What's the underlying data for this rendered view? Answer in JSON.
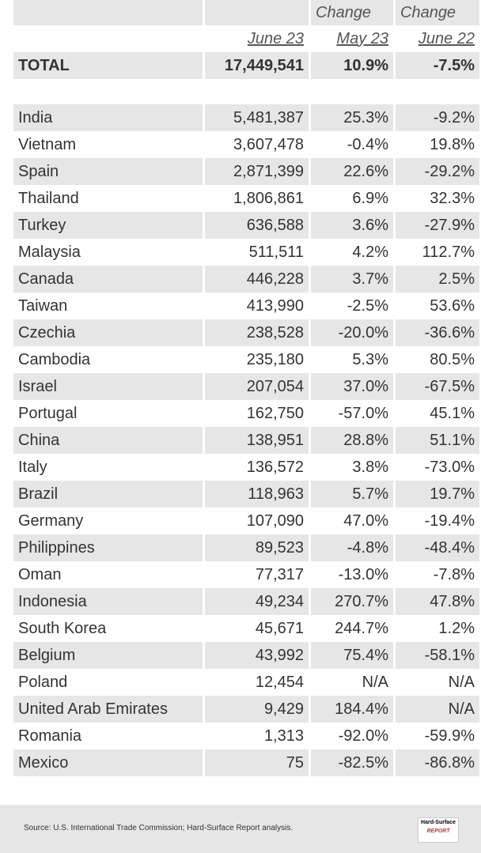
{
  "header": {
    "row1": [
      "Change",
      "Change"
    ],
    "row2": [
      "June 23",
      "May 23",
      "June 22"
    ]
  },
  "total": [
    "TOTAL",
    "17,449,541",
    "10.9%",
    "-7.5%"
  ],
  "table": {
    "rows": [
      [
        "India",
        "5,481,387",
        "25.3%",
        "-9.2%"
      ],
      [
        "Vietnam",
        "3,607,478",
        "-0.4%",
        "19.8%"
      ],
      [
        "Spain",
        "2,871,399",
        "22.6%",
        "-29.2%"
      ],
      [
        "Thailand",
        "1,806,861",
        "6.9%",
        "32.3%"
      ],
      [
        "Turkey",
        "636,588",
        "3.6%",
        "-27.9%"
      ],
      [
        "Malaysia",
        "511,511",
        "4.2%",
        "112.7%"
      ],
      [
        "Canada",
        "446,228",
        "3.7%",
        "2.5%"
      ],
      [
        "Taiwan",
        "413,990",
        "-2.5%",
        "53.6%"
      ],
      [
        "Czechia",
        "238,528",
        "-20.0%",
        "-36.6%"
      ],
      [
        "Cambodia",
        "235,180",
        "5.3%",
        "80.5%"
      ],
      [
        "Israel",
        "207,054",
        "37.0%",
        "-67.5%"
      ],
      [
        "Portugal",
        "162,750",
        "-57.0%",
        "45.1%"
      ],
      [
        "China",
        "138,951",
        "28.8%",
        "51.1%"
      ],
      [
        "Italy",
        "136,572",
        "3.8%",
        "-73.0%"
      ],
      [
        "Brazil",
        "118,963",
        "5.7%",
        "19.7%"
      ],
      [
        "Germany",
        "107,090",
        "47.0%",
        "-19.4%"
      ],
      [
        "Philippines",
        "89,523",
        "-4.8%",
        "-48.4%"
      ],
      [
        "Oman",
        "77,317",
        "-13.0%",
        "-7.8%"
      ],
      [
        "Indonesia",
        "49,234",
        "270.7%",
        "47.8%"
      ],
      [
        "South Korea",
        "45,671",
        "244.7%",
        "1.2%"
      ],
      [
        "Belgium",
        "43,992",
        "75.4%",
        "-58.1%"
      ],
      [
        "Poland",
        "12,454",
        "N/A",
        "N/A"
      ],
      [
        "United Arab Emirates",
        "9,429",
        "184.4%",
        "N/A"
      ],
      [
        "Romania",
        "1,313",
        "-92.0%",
        "-59.9%"
      ],
      [
        "Mexico",
        "75",
        "-82.5%",
        "-86.8%"
      ]
    ]
  },
  "footer": {
    "source": "Source: U.S. International Trade Commission; Hard-Surface Report analysis.",
    "logo": [
      "Hard-Surface",
      "REPORT"
    ]
  }
}
